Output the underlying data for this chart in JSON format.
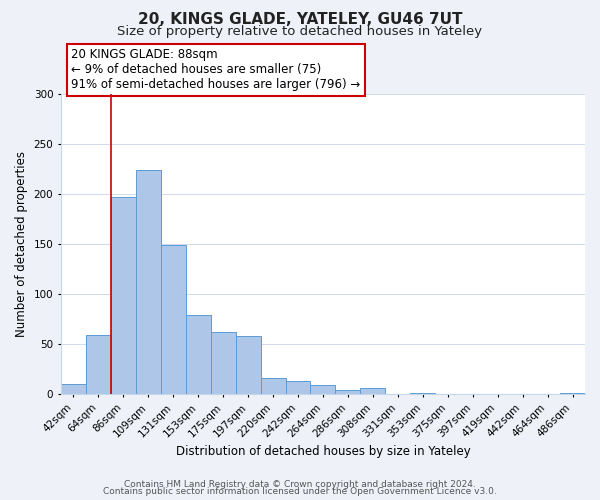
{
  "title": "20, KINGS GLADE, YATELEY, GU46 7UT",
  "subtitle": "Size of property relative to detached houses in Yateley",
  "xlabel": "Distribution of detached houses by size in Yateley",
  "ylabel": "Number of detached properties",
  "bar_labels": [
    "42sqm",
    "64sqm",
    "86sqm",
    "109sqm",
    "131sqm",
    "153sqm",
    "175sqm",
    "197sqm",
    "220sqm",
    "242sqm",
    "264sqm",
    "286sqm",
    "308sqm",
    "331sqm",
    "353sqm",
    "375sqm",
    "397sqm",
    "419sqm",
    "442sqm",
    "464sqm",
    "486sqm"
  ],
  "bar_values": [
    10,
    59,
    197,
    224,
    149,
    79,
    62,
    58,
    16,
    13,
    9,
    4,
    6,
    0,
    1,
    0,
    0,
    0,
    0,
    0,
    1
  ],
  "bar_color": "#aec6e8",
  "bar_edge_color": "#5b9bd5",
  "property_line_color": "#cc0000",
  "annotation_text": "20 KINGS GLADE: 88sqm\n← 9% of detached houses are smaller (75)\n91% of semi-detached houses are larger (796) →",
  "annotation_box_color": "#ffffff",
  "annotation_box_edge_color": "#cc0000",
  "ylim": [
    0,
    300
  ],
  "yticks": [
    0,
    50,
    100,
    150,
    200,
    250,
    300
  ],
  "footer1": "Contains HM Land Registry data © Crown copyright and database right 2024.",
  "footer2": "Contains public sector information licensed under the Open Government Licence v3.0.",
  "bg_color": "#eef2f8",
  "plot_bg_color": "#ffffff",
  "grid_color": "#c8d4e8",
  "title_fontsize": 11,
  "subtitle_fontsize": 9.5,
  "axis_label_fontsize": 8.5,
  "tick_fontsize": 7.5,
  "annotation_fontsize": 8.5,
  "footer_fontsize": 6.5
}
